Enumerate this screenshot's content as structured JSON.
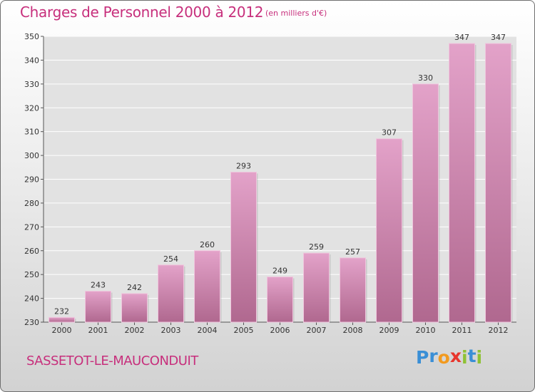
{
  "header": {
    "title": "Charges de Personnel 2000 à 2012",
    "subtitle": "(en milliers d'€)"
  },
  "footer": {
    "commune": "SASSETOT-LE-MAUCONDUIT",
    "logo_letters": [
      "P",
      "r",
      "o",
      "x",
      "i",
      "t",
      "i"
    ],
    "logo_colors": [
      "#3a8fd6",
      "#3a8fd6",
      "#f29a1f",
      "#e8362d",
      "#8fc134",
      "#3a8fd6",
      "#8fc134"
    ]
  },
  "colors": {
    "bar_top": "#e3a2c9",
    "bar_bottom": "#b0688f",
    "text": "#c72f7c",
    "grid": "#ffffff"
  },
  "chart_data": {
    "type": "bar",
    "categories": [
      "2000",
      "2001",
      "2002",
      "2003",
      "2004",
      "2005",
      "2006",
      "2007",
      "2008",
      "2009",
      "2010",
      "2011",
      "2012"
    ],
    "values": [
      232,
      243,
      242,
      254,
      260,
      293,
      249,
      259,
      257,
      307,
      330,
      347,
      347
    ],
    "ylim": [
      230,
      350
    ],
    "yticks": [
      230,
      240,
      250,
      260,
      270,
      280,
      290,
      300,
      310,
      320,
      330,
      340,
      350
    ],
    "grid": true,
    "legend": "none"
  }
}
